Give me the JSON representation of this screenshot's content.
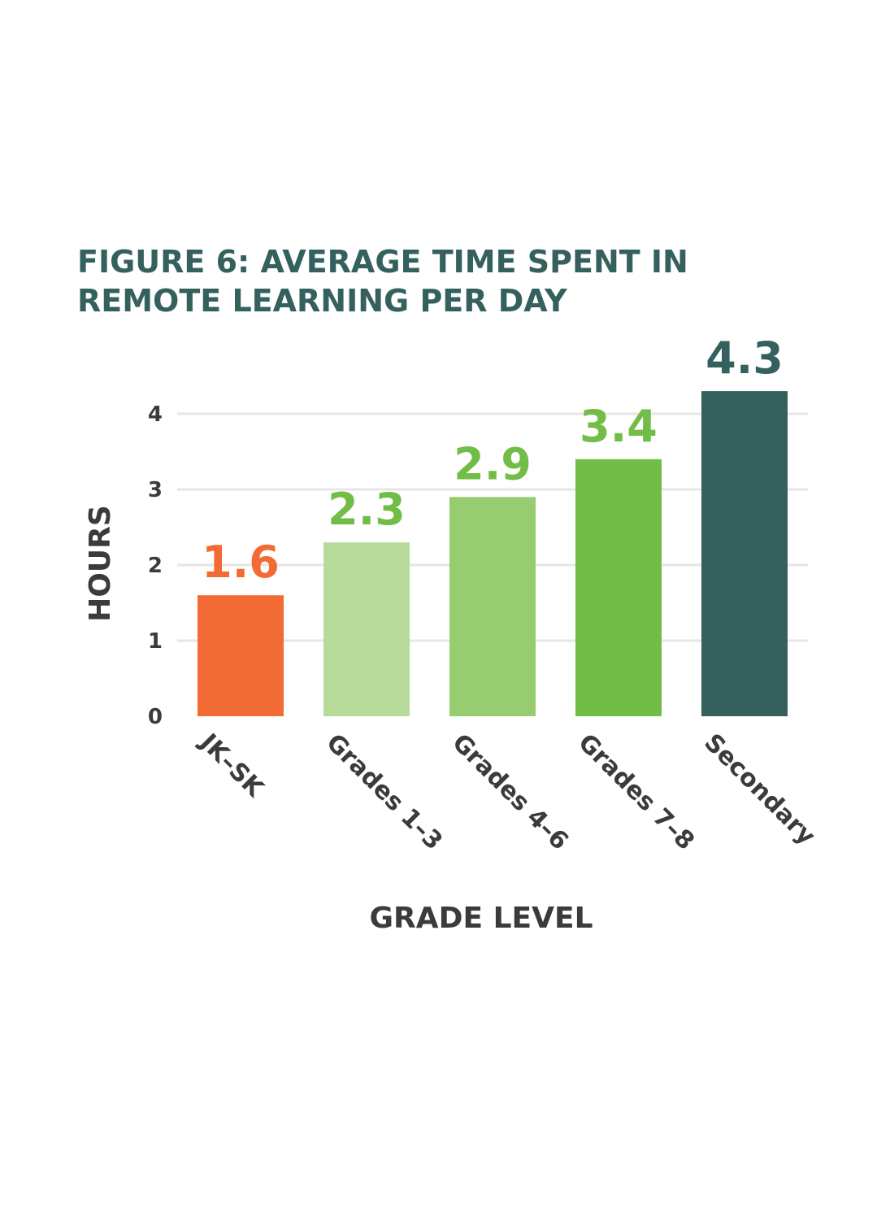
{
  "chart_data": {
    "type": "bar",
    "title_lines": [
      "FIGURE 6: AVERAGE TIME SPENT IN",
      "REMOTE LEARNING PER DAY"
    ],
    "xlabel": "GRADE LEVEL",
    "ylabel": "HOURS",
    "categories": [
      "JK–SK",
      "Grades 1–3",
      "Grades 4–6",
      "Grades 7–8",
      "Secondary"
    ],
    "values": [
      1.6,
      2.3,
      2.9,
      3.4,
      4.3
    ],
    "value_labels": [
      "1.6",
      "2.3",
      "2.9",
      "3.4",
      "4.3"
    ],
    "bar_colors": [
      "#f26b34",
      "#b8da9b",
      "#97cc70",
      "#72bd47",
      "#34605e"
    ],
    "label_colors": [
      "#f26b34",
      "#72bd47",
      "#72bd47",
      "#72bd47",
      "#34605e"
    ],
    "yticks": [
      0,
      1,
      2,
      3,
      4
    ],
    "ylim": [
      0,
      4
    ],
    "grid": true,
    "legend": "none"
  }
}
